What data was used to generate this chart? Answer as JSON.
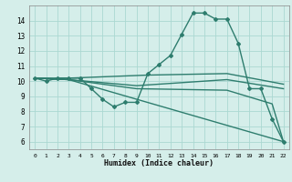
{
  "line1": {
    "x": [
      0,
      1,
      2,
      3,
      4,
      5,
      6,
      7,
      8,
      9,
      10,
      11,
      12,
      13,
      14,
      15,
      16,
      17,
      18,
      19,
      20,
      21,
      22
    ],
    "y": [
      10.2,
      10.0,
      10.2,
      10.2,
      10.2,
      9.5,
      8.8,
      8.3,
      8.6,
      8.6,
      10.5,
      11.1,
      11.7,
      13.1,
      14.5,
      14.5,
      14.1,
      14.1,
      12.5,
      9.5,
      9.5,
      7.5,
      6.0
    ],
    "color": "#2e7d6e",
    "linewidth": 1.0,
    "marker": "D",
    "markersize": 2.0
  },
  "line2": {
    "x": [
      0,
      3,
      10,
      17,
      22
    ],
    "y": [
      10.2,
      10.2,
      10.4,
      10.5,
      9.8
    ],
    "color": "#2e7d6e",
    "linewidth": 1.0
  },
  "line3": {
    "x": [
      0,
      3,
      9,
      17,
      22
    ],
    "y": [
      10.2,
      10.1,
      9.7,
      10.1,
      9.5
    ],
    "color": "#2e7d6e",
    "linewidth": 1.0
  },
  "line4": {
    "x": [
      0,
      3,
      9,
      17,
      21,
      22
    ],
    "y": [
      10.2,
      10.1,
      9.5,
      9.4,
      8.5,
      6.0
    ],
    "color": "#2e7d6e",
    "linewidth": 1.0
  },
  "line5": {
    "x": [
      0,
      3,
      22
    ],
    "y": [
      10.2,
      10.1,
      6.0
    ],
    "color": "#2e7d6e",
    "linewidth": 1.0
  },
  "bg_color": "#d5eeea",
  "grid_color": "#aad8d2",
  "xlabel": "Humidex (Indice chaleur)",
  "xlim": [
    -0.5,
    22.5
  ],
  "ylim": [
    5.5,
    15.0
  ],
  "yticks": [
    6,
    7,
    8,
    9,
    10,
    11,
    12,
    13,
    14
  ],
  "xticks": [
    0,
    1,
    2,
    3,
    4,
    5,
    6,
    7,
    8,
    9,
    10,
    11,
    12,
    13,
    14,
    15,
    16,
    17,
    18,
    19,
    20,
    21,
    22
  ]
}
